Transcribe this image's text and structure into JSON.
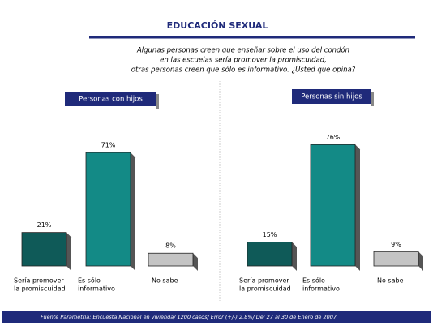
{
  "title": "EDUCACIÓN SEXUAL",
  "question": [
    "Algunas personas creen que enseñar sobre el uso del condón",
    "en las escuelas sería promover la promiscuidad,",
    "otras personas creen que sólo es informativo. ¿Usted que opina?"
  ],
  "source": "Fuente Parametría: Encuesta Nacional en vivienda/ 1200 casos/ Error (+/-) 2.8%/ Del 27 al 30 de Enero de 2007",
  "chart_data": [
    {
      "type": "bar",
      "title": "Personas con hijos",
      "categories": [
        [
          "Sería promover",
          "la promiscuidad"
        ],
        [
          "Es sólo",
          "informativo"
        ],
        [
          "No sabe"
        ]
      ],
      "values": [
        21,
        71,
        8
      ],
      "value_labels": [
        "21%",
        "71%",
        "8%"
      ],
      "colors": [
        "#0f5a58",
        "#138a86",
        "#c4c4c4"
      ]
    },
    {
      "type": "bar",
      "title": "Personas sin hijos",
      "categories": [
        [
          "Sería promover",
          "la promiscuidad"
        ],
        [
          "Es sólo",
          "informativo"
        ],
        [
          "No sabe"
        ]
      ],
      "values": [
        15,
        76,
        9
      ],
      "value_labels": [
        "15%",
        "76%",
        "9%"
      ],
      "colors": [
        "#0f5a58",
        "#138a86",
        "#c4c4c4"
      ]
    }
  ]
}
